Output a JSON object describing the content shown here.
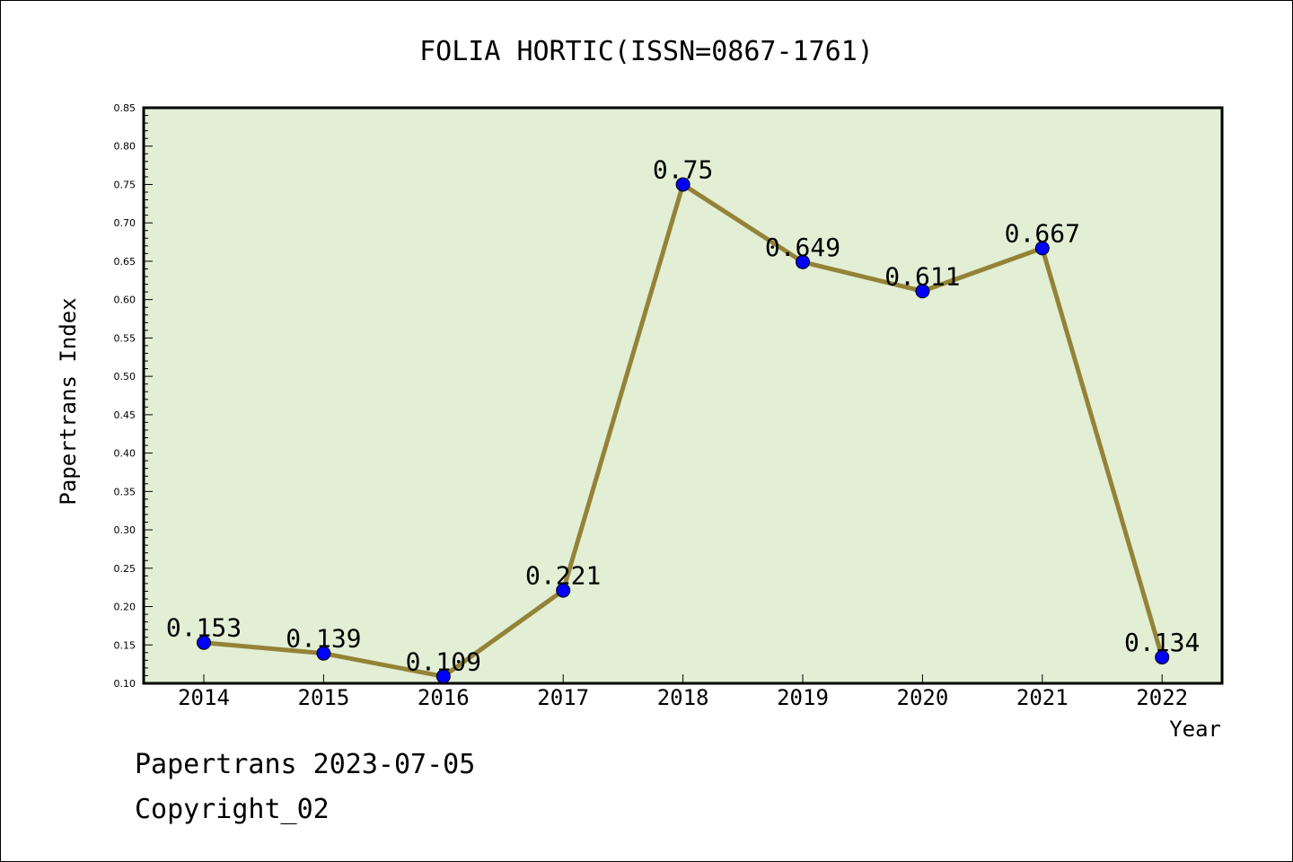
{
  "chart_data": {
    "type": "line",
    "title": "FOLIA HORTIC(ISSN=0867-1761)",
    "xlabel": "Year",
    "ylabel": "Papertrans Index",
    "categories": [
      "2014",
      "2015",
      "2016",
      "2017",
      "2018",
      "2019",
      "2020",
      "2021",
      "2022"
    ],
    "series": [
      {
        "values": [
          0.153,
          0.139,
          0.109,
          0.221,
          0.75,
          0.649,
          0.611,
          0.667,
          0.134
        ],
        "labels": [
          "0.153",
          "0.139",
          "0.109",
          "0.221",
          "0.75",
          "0.649",
          "0.611",
          "0.667",
          "0.134"
        ]
      }
    ],
    "ylim": [
      0.1,
      0.85
    ],
    "yticks": [
      "0.10",
      "0.15",
      "0.20",
      "0.25",
      "0.30",
      "0.35",
      "0.40",
      "0.45",
      "0.50",
      "0.55",
      "0.60",
      "0.65",
      "0.70",
      "0.75",
      "0.80",
      "0.85"
    ],
    "grid": false,
    "colors": {
      "plot_background": "#e2efd5",
      "line": "#948337",
      "marker": "#0000ff"
    }
  },
  "footer": {
    "source": "Papertrans 2023-07-05",
    "copyright": "Copyright_02"
  }
}
